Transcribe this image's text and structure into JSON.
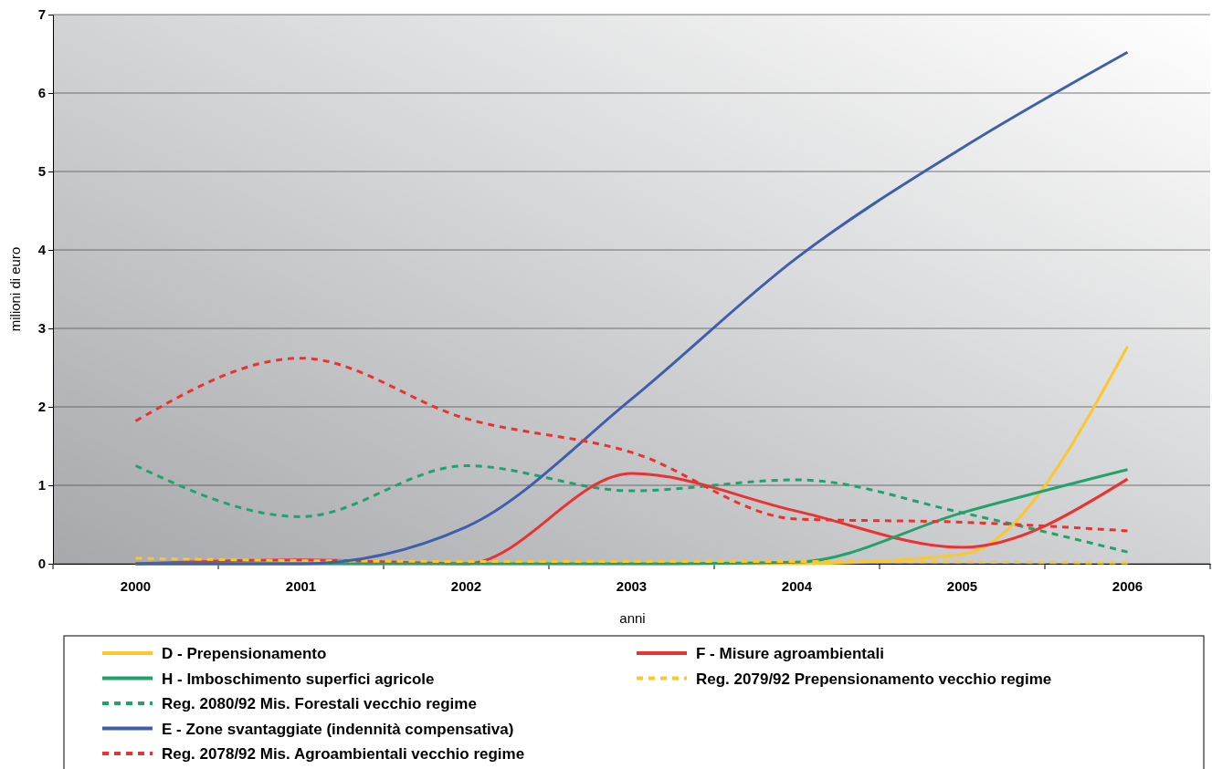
{
  "chart_data": {
    "type": "line",
    "xlabel": "anni",
    "ylabel": "milioni di euro",
    "categories": [
      "2000",
      "2001",
      "2002",
      "2003",
      "2004",
      "2005",
      "2006"
    ],
    "ylim": [
      0,
      7
    ],
    "yticks": [
      0,
      1,
      2,
      3,
      4,
      5,
      6,
      7
    ],
    "grid": "y",
    "legend": "bottom",
    "marker": "none",
    "series": [
      {
        "name": "D - Prepensionamento",
        "color": "#fcc72d",
        "values": [
          0,
          0,
          0,
          0,
          0,
          0.12,
          2.77
        ]
      },
      {
        "name": "F - Misure agroambientali",
        "color": "#ea3232",
        "values": [
          0,
          0.05,
          0,
          1.15,
          0.67,
          0.21,
          1.08
        ]
      },
      {
        "name": "H - Imboschimento superfici agricole",
        "color": "#23a16b",
        "values": [
          0,
          0,
          0,
          0,
          0.02,
          0.65,
          1.2
        ]
      },
      {
        "name": "Reg. 2079/92 Prepensionamento vecchio regime",
        "color": "#fcc72d",
        "line_style": "dashed",
        "values": [
          0.07,
          0.04,
          0.03,
          0.03,
          0.03,
          0.02,
          0.01
        ]
      },
      {
        "name": "Reg. 2080/92 Mis. Forestali vecchio regime",
        "color": "#23a16b",
        "line_style": "dashed",
        "values": [
          1.25,
          0.6,
          1.25,
          0.93,
          1.07,
          0.65,
          0.15
        ]
      },
      {
        "name": "E - Zone svantaggiate (indennità compensativa)",
        "color": "#3f5fad",
        "values": [
          0,
          0,
          0.47,
          2.1,
          3.9,
          5.3,
          6.52
        ]
      },
      {
        "name": "Reg. 2078/92 Mis. Agroambientali vecchio regime",
        "color": "#ea3232",
        "line_style": "dashed",
        "values": [
          1.82,
          2.62,
          1.85,
          1.42,
          0.57,
          0.53,
          0.42
        ]
      }
    ]
  }
}
